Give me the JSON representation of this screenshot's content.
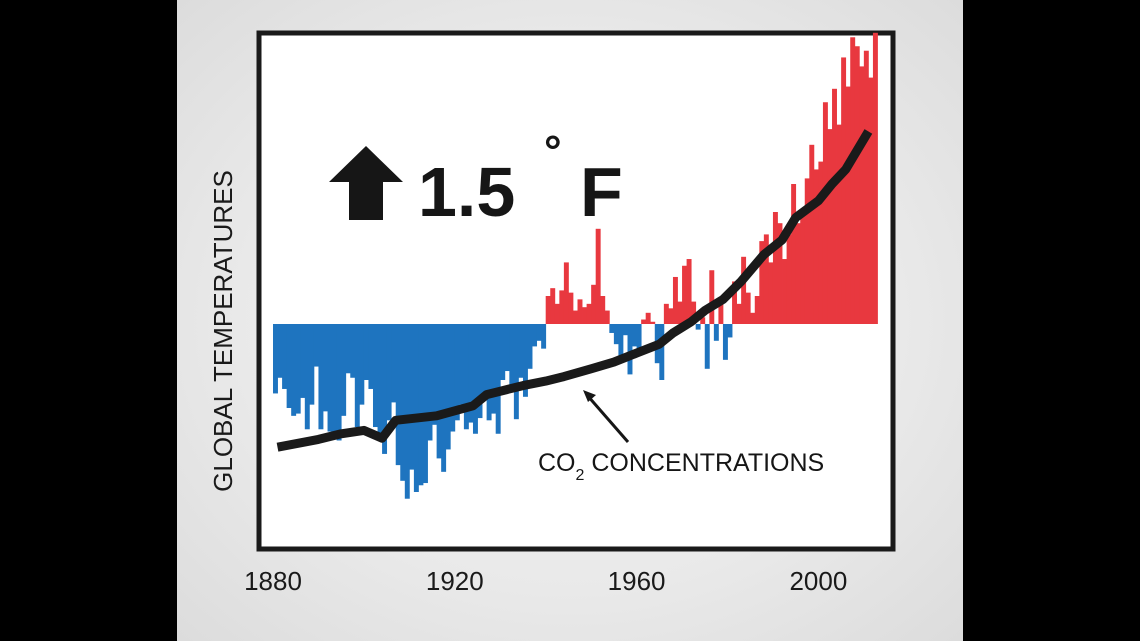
{
  "chart_data": {
    "type": "bar",
    "headline": {
      "value": "1.5",
      "degree": "°",
      "unit": "F",
      "arrow_icon": "up-arrow-icon"
    },
    "ylabel": "GLOBAL TEMPERATURES",
    "xticks": [
      1880,
      1920,
      1960,
      2000
    ],
    "xlim": [
      1880,
      2012
    ],
    "colors": {
      "positive": "#e8383f",
      "negative": "#1e74bf",
      "line": "#1a1a1a"
    },
    "anomaly_series": {
      "x": [
        1880,
        1881,
        1882,
        1883,
        1884,
        1885,
        1886,
        1887,
        1888,
        1889,
        1890,
        1891,
        1892,
        1893,
        1894,
        1895,
        1896,
        1897,
        1898,
        1899,
        1900,
        1901,
        1902,
        1903,
        1904,
        1905,
        1906,
        1907,
        1908,
        1909,
        1910,
        1911,
        1912,
        1913,
        1914,
        1915,
        1916,
        1917,
        1918,
        1919,
        1920,
        1921,
        1922,
        1923,
        1924,
        1925,
        1926,
        1927,
        1928,
        1929,
        1930,
        1931,
        1932,
        1933,
        1934,
        1935,
        1936,
        1937,
        1938,
        1939,
        1940,
        1941,
        1942,
        1943,
        1944,
        1945,
        1946,
        1947,
        1948,
        1949,
        1950,
        1951,
        1952,
        1953,
        1954,
        1955,
        1956,
        1957,
        1958,
        1959,
        1960,
        1961,
        1962,
        1963,
        1964,
        1965,
        1966,
        1967,
        1968,
        1969,
        1970,
        1971,
        1972,
        1973,
        1974,
        1975,
        1976,
        1977,
        1978,
        1979,
        1980,
        1981,
        1982,
        1983,
        1984,
        1985,
        1986,
        1987,
        1988,
        1989,
        1990,
        1991,
        1992,
        1993,
        1994,
        1995,
        1996,
        1997,
        1998,
        1999,
        2000,
        2001,
        2002,
        2003,
        2004,
        2005,
        2006,
        2007,
        2008,
        2009,
        2010,
        2011,
        2012
      ],
      "values": [
        -0.62,
        -0.48,
        -0.58,
        -0.75,
        -0.82,
        -0.8,
        -0.66,
        -0.94,
        -0.72,
        -0.38,
        -0.94,
        -0.78,
        -0.96,
        -0.98,
        -1.04,
        -0.82,
        -0.44,
        -0.48,
        -0.92,
        -0.72,
        -0.5,
        -0.58,
        -0.92,
        -1.0,
        -1.16,
        -0.86,
        -0.7,
        -1.26,
        -1.4,
        -1.56,
        -1.3,
        -1.5,
        -1.44,
        -1.42,
        -1.04,
        -0.9,
        -1.2,
        -1.32,
        -1.12,
        -0.96,
        -0.86,
        -0.72,
        -0.94,
        -0.88,
        -0.98,
        -0.84,
        -0.62,
        -0.86,
        -0.8,
        -0.98,
        -0.5,
        -0.42,
        -0.55,
        -0.85,
        -0.48,
        -0.65,
        -0.4,
        -0.2,
        -0.15,
        -0.22,
        0.25,
        0.32,
        0.18,
        0.3,
        0.55,
        0.28,
        0.12,
        0.22,
        0.15,
        0.18,
        0.35,
        0.85,
        0.25,
        0.12,
        -0.08,
        -0.18,
        -0.32,
        -0.1,
        -0.45,
        -0.2,
        -0.25,
        0.04,
        0.1,
        0.02,
        -0.35,
        -0.5,
        0.18,
        0.14,
        0.42,
        0.2,
        0.52,
        0.58,
        0.2,
        -0.05,
        0.06,
        -0.4,
        0.48,
        -0.15,
        0.22,
        -0.32,
        -0.12,
        0.38,
        0.18,
        0.6,
        0.28,
        0.1,
        0.25,
        0.74,
        0.8,
        0.55,
        1.0,
        0.9,
        0.58,
        0.8,
        1.25,
        0.9,
        0.98,
        1.3,
        1.6,
        1.38,
        1.45,
        1.98,
        1.74,
        2.1,
        1.78,
        2.38,
        2.12,
        2.56,
        2.48,
        2.3,
        2.44,
        2.2,
        2.6
      ]
    },
    "co2_series": {
      "x": [
        1881,
        1890,
        1895,
        1900,
        1904,
        1907,
        1916,
        1924,
        1927,
        1930,
        1935,
        1940,
        1944,
        1950,
        1955,
        1960,
        1965,
        1968,
        1972,
        1975,
        1979,
        1983,
        1988,
        1992,
        1995,
        2000,
        2003,
        2006,
        2011
      ],
      "values": [
        -1.1,
        -1.03,
        -0.98,
        -0.95,
        -1.02,
        -0.86,
        -0.82,
        -0.73,
        -0.63,
        -0.6,
        -0.55,
        -0.51,
        -0.47,
        -0.4,
        -0.34,
        -0.26,
        -0.18,
        -0.08,
        0.02,
        0.12,
        0.22,
        0.38,
        0.62,
        0.75,
        0.95,
        1.1,
        1.25,
        1.38,
        1.72
      ]
    },
    "annotation": {
      "text": "CO",
      "subscript": "2",
      "text_after": " CONCENTRATIONS"
    }
  }
}
